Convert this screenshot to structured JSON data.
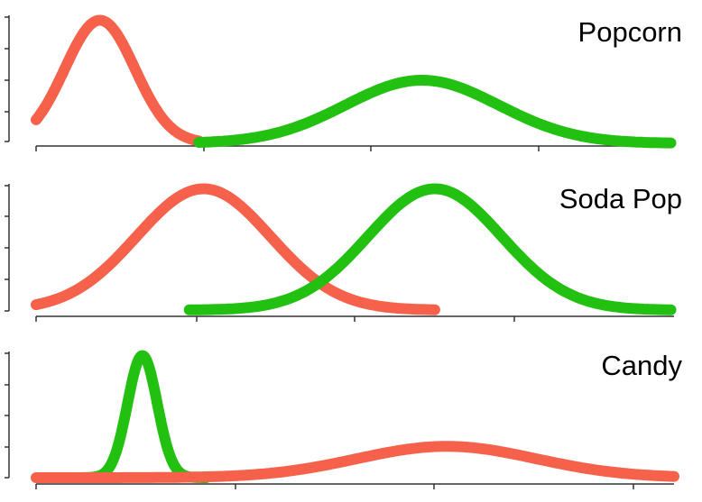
{
  "chart_data": [
    {
      "type": "line",
      "title": "Popcorn",
      "xlabel": "",
      "ylabel": "",
      "xlim": [
        0,
        4
      ],
      "ylim": [
        0,
        4
      ],
      "grid": false,
      "series": [
        {
          "color": "#f5614a",
          "kind": "normal",
          "mean": 0.4,
          "sd": 0.22,
          "peak": 3.9,
          "xmin": 0.0,
          "xmax": 1.02
        },
        {
          "color": "#22c010",
          "kind": "normal",
          "mean": 2.42,
          "sd": 0.48,
          "peak": 2.0,
          "xmin": 1.02,
          "xmax": 3.98
        }
      ]
    },
    {
      "type": "line",
      "title": "Soda Pop",
      "xlabel": "",
      "ylabel": "",
      "xlim": [
        0,
        4
      ],
      "ylim": [
        0,
        4
      ],
      "grid": false,
      "series": [
        {
          "color": "#f5614a",
          "kind": "normal",
          "mean": 1.05,
          "sd": 0.42,
          "peak": 3.9,
          "xmin": 0.0,
          "xmax": 2.5
        },
        {
          "color": "#22c010",
          "kind": "normal",
          "mean": 2.5,
          "sd": 0.42,
          "peak": 3.9,
          "xmin": 0.96,
          "xmax": 3.98
        }
      ]
    },
    {
      "type": "line",
      "title": "Candy",
      "xlabel": "",
      "ylabel": "",
      "xlim": [
        0,
        3
      ],
      "ylim": [
        0,
        4
      ],
      "grid": false,
      "series": [
        {
          "color": "#22c010",
          "kind": "normal",
          "mean": 0.5,
          "sd": 0.07,
          "peak": 3.9,
          "xmin": 0.2,
          "xmax": 0.8
        },
        {
          "color": "#f5614a",
          "kind": "normal",
          "mean": 1.93,
          "sd": 0.42,
          "peak": 1.0,
          "xmin": 0.0,
          "xmax": 3.0
        }
      ]
    }
  ]
}
